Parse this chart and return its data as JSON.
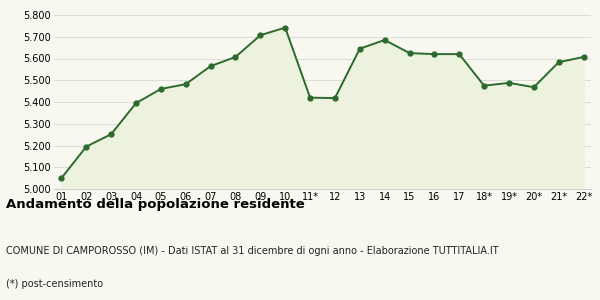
{
  "x_labels": [
    "01",
    "02",
    "03",
    "04",
    "05",
    "06",
    "07",
    "08",
    "09",
    "10",
    "11*",
    "12",
    "13",
    "14",
    "15",
    "16",
    "17",
    "18*",
    "19*",
    "20*",
    "21*",
    "22*"
  ],
  "y_values": [
    5050,
    5195,
    5252,
    5395,
    5460,
    5482,
    5565,
    5607,
    5707,
    5742,
    5420,
    5418,
    5645,
    5685,
    5625,
    5620,
    5620,
    5475,
    5488,
    5468,
    5583,
    5607
  ],
  "line_color": "#2d6a2d",
  "fill_color": "#edf2de",
  "marker_color": "#2d6a2d",
  "marker_size": 3.5,
  "line_width": 1.4,
  "ylim": [
    5000,
    5800
  ],
  "yticks": [
    5000,
    5100,
    5200,
    5300,
    5400,
    5500,
    5600,
    5700,
    5800
  ],
  "title": "Andamento della popolazione residente",
  "subtitle": "COMUNE DI CAMPOROSSO (IM) - Dati ISTAT al 31 dicembre di ogni anno - Elaborazione TUTTITALIA.IT",
  "footnote": "(*) post-censimento",
  "bg_color": "#f8f8f0",
  "grid_color": "#d0d0d0",
  "title_fontsize": 9.5,
  "subtitle_fontsize": 7.0,
  "footnote_fontsize": 7.0,
  "tick_fontsize": 7.0,
  "ytick_fontsize": 7.0
}
